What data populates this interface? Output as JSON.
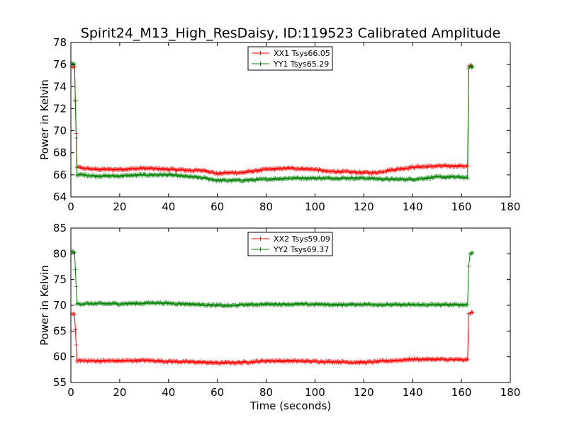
{
  "figure": {
    "title": "Spirit24_M13_High_ResDaisy, ID:119523 Calibrated Amplitude"
  },
  "chart_data": [
    {
      "type": "line",
      "title": "Spirit24_M13_High_ResDaisy, ID:119523 Calibrated Amplitude",
      "xlabel": "",
      "ylabel": "Power in Kelvin",
      "xlim": [
        0,
        180
      ],
      "ylim": [
        64,
        78
      ],
      "xticks": [
        0,
        20,
        40,
        60,
        80,
        100,
        120,
        140,
        160,
        180
      ],
      "yticks": [
        64,
        66,
        68,
        70,
        72,
        74,
        76,
        78
      ],
      "legend_position": "top-center",
      "series": [
        {
          "name": "XX1 Tsys66.05",
          "color": "#ff0000",
          "x": [
            0.5,
            1.5,
            2.5,
            5,
            10,
            20,
            30,
            40,
            50,
            55,
            60,
            65,
            70,
            80,
            90,
            100,
            105,
            110,
            120,
            125,
            130,
            140,
            150,
            160,
            162.5,
            163,
            163.5,
            164.5
          ],
          "y": [
            75.8,
            75.8,
            66.7,
            66.6,
            66.5,
            66.5,
            66.6,
            66.5,
            66.4,
            66.4,
            66.1,
            66.2,
            66.2,
            66.5,
            66.6,
            66.5,
            66.3,
            66.3,
            66.2,
            66.2,
            66.4,
            66.7,
            66.8,
            66.8,
            66.8,
            75.8,
            75.9,
            75.8
          ]
        },
        {
          "name": "YY1 Tsys65.29",
          "color": "#008000",
          "x": [
            0.5,
            1.5,
            2.5,
            5,
            10,
            20,
            30,
            40,
            50,
            55,
            60,
            65,
            70,
            80,
            90,
            100,
            110,
            120,
            130,
            140,
            150,
            160,
            162.5,
            163,
            163.5,
            164.5
          ],
          "y": [
            76.1,
            76.0,
            66.0,
            66.0,
            65.9,
            65.9,
            66.0,
            66.0,
            65.8,
            65.7,
            65.5,
            65.5,
            65.5,
            65.6,
            65.7,
            65.7,
            65.7,
            65.7,
            65.6,
            65.6,
            65.8,
            65.8,
            65.7,
            75.7,
            75.8,
            75.8
          ]
        }
      ]
    },
    {
      "type": "line",
      "title": "",
      "xlabel": "Time (seconds)",
      "ylabel": "Power in Kelvin",
      "xlim": [
        0,
        180
      ],
      "ylim": [
        55,
        85
      ],
      "xticks": [
        0,
        20,
        40,
        60,
        80,
        100,
        120,
        140,
        160,
        180
      ],
      "yticks": [
        55,
        60,
        65,
        70,
        75,
        80,
        85
      ],
      "legend_position": "top-center",
      "series": [
        {
          "name": "XX2 Tsys59.09",
          "color": "#ff0000",
          "x": [
            0.5,
            1.5,
            2.5,
            5,
            10,
            20,
            30,
            40,
            50,
            60,
            70,
            80,
            90,
            100,
            110,
            120,
            130,
            140,
            150,
            160,
            162.5,
            163,
            163.5,
            164.5
          ],
          "y": [
            68.3,
            68.3,
            59.3,
            59.2,
            59.2,
            59.2,
            59.3,
            59.1,
            59.0,
            58.8,
            58.9,
            59.2,
            59.2,
            59.1,
            59.0,
            58.9,
            59.2,
            59.5,
            59.5,
            59.4,
            59.4,
            68.3,
            68.5,
            68.6
          ]
        },
        {
          "name": "YY2 Tsys69.37",
          "color": "#008000",
          "x": [
            0.5,
            1.5,
            2.5,
            5,
            10,
            20,
            30,
            35,
            40,
            50,
            60,
            65,
            70,
            80,
            90,
            100,
            110,
            120,
            130,
            140,
            150,
            160,
            162.5,
            163,
            163.5,
            164.5
          ],
          "y": [
            80.5,
            80.3,
            70.3,
            70.3,
            70.3,
            70.3,
            70.4,
            70.5,
            70.4,
            70.2,
            70.0,
            69.9,
            70.1,
            70.2,
            70.2,
            70.2,
            70.1,
            70.2,
            70.1,
            70.1,
            70.1,
            70.1,
            70.1,
            77.5,
            80.0,
            80.2
          ]
        }
      ]
    }
  ]
}
